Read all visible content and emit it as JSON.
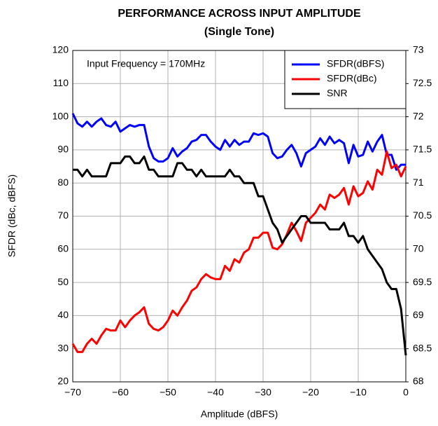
{
  "chart_data": {
    "type": "line",
    "title": "PERFORMANCE ACROSS INPUT AMPLITUDE",
    "subtitle": "(Single Tone)",
    "x_label": "Amplitude (dBFS)",
    "y_label": "SFDR (dBc, dBFS)",
    "annotation": "Input Frequency = 170MHz",
    "legend": "upper right",
    "grid": true,
    "xlim": [
      -70,
      0
    ],
    "xticks": [
      {
        "value": -70,
        "label": "−70"
      },
      {
        "value": -60,
        "label": "−60"
      },
      {
        "value": -50,
        "label": "−50"
      },
      {
        "value": -40,
        "label": "−40"
      },
      {
        "value": -30,
        "label": "−30"
      },
      {
        "value": -20,
        "label": "−20"
      },
      {
        "value": -10,
        "label": "−10"
      },
      0
    ],
    "ylim": [
      20,
      120
    ],
    "yticks": [
      20,
      30,
      40,
      50,
      60,
      70,
      80,
      90,
      100,
      110,
      120
    ],
    "y2lim": [
      68,
      73
    ],
    "y2ticks": [
      68,
      68.5,
      69,
      69.5,
      70,
      70.5,
      71,
      71.5,
      72,
      72.5,
      73
    ],
    "x": [
      -70,
      -69,
      -68,
      -67,
      -66,
      -65,
      -64,
      -63,
      -62,
      -61,
      -60,
      -59,
      -58,
      -57,
      -56,
      -55,
      -54,
      -53,
      -52,
      -51,
      -50,
      -49,
      -48,
      -47,
      -46,
      -45,
      -44,
      -43,
      -42,
      -41,
      -40,
      -39,
      -38,
      -37,
      -36,
      -35,
      -34,
      -33,
      -32,
      -31,
      -30,
      -29,
      -28,
      -27,
      -26,
      -25,
      -24,
      -23,
      -22,
      -21,
      -20,
      -19,
      -18,
      -17,
      -16,
      -15,
      -14,
      -13,
      -12,
      -11,
      -10,
      -9,
      -8,
      -7,
      -6,
      -5,
      -4,
      -3,
      -2,
      -1,
      0
    ],
    "series": [
      {
        "name": "SFDR(dBFS)",
        "color": "#0000ff",
        "values": [
          101,
          98,
          97,
          98.5,
          97,
          98.5,
          99.5,
          97.5,
          97,
          98.5,
          95.5,
          96.5,
          97.5,
          97,
          97.5,
          97.5,
          91,
          87.5,
          86.5,
          86.5,
          87.5,
          90.5,
          88,
          89.5,
          90.5,
          92.5,
          93,
          94.5,
          94.5,
          92.5,
          91,
          90,
          93,
          91,
          93,
          91.5,
          92.5,
          92.5,
          95,
          94.5,
          95,
          94,
          89,
          87.5,
          88,
          90,
          91.5,
          89,
          85,
          89,
          90,
          91,
          93.5,
          91.5,
          94,
          92,
          93,
          92,
          86,
          91.5,
          88,
          88.5,
          92.5,
          89.5,
          92.5,
          94.5,
          88.5,
          88.5,
          84,
          85.5,
          85.5
        ]
      },
      {
        "name": "SFDR(dBc)",
        "color": "#ff0000",
        "values": [
          31.5,
          29,
          29,
          31.5,
          33,
          31.5,
          34,
          36,
          35.5,
          35.5,
          38.5,
          36.5,
          38.5,
          40,
          41,
          42.5,
          37.5,
          36,
          35.5,
          36.5,
          38.5,
          41.5,
          40,
          42.5,
          44.5,
          47.5,
          48.5,
          51,
          52.5,
          51.5,
          51,
          51,
          55,
          53.5,
          57,
          56,
          59,
          60,
          63.5,
          63.5,
          65,
          65,
          60.5,
          60,
          61.5,
          64.5,
          68,
          65.5,
          62.5,
          68,
          69.5,
          71,
          73.5,
          72,
          76.5,
          75.5,
          76.5,
          78.5,
          73.5,
          79,
          76,
          77,
          80.5,
          78,
          84,
          82.5,
          89.5,
          84.5,
          85.5,
          82,
          85
        ]
      },
      {
        "name": "SNR",
        "color": "#000000",
        "axis": "y2",
        "values": [
          71.2,
          71.2,
          71.1,
          71.2,
          71.1,
          71.1,
          71.1,
          71.1,
          71.3,
          71.3,
          71.3,
          71.4,
          71.4,
          71.3,
          71.3,
          71.4,
          71.2,
          71.2,
          71.1,
          71.1,
          71.1,
          71.1,
          71.3,
          71.3,
          71.2,
          71.2,
          71.1,
          71.2,
          71.1,
          71.1,
          71.1,
          71.1,
          71.1,
          71.2,
          71.1,
          71.1,
          71,
          71,
          71,
          70.8,
          70.8,
          70.6,
          70.4,
          70.3,
          70.1,
          70.2,
          70.3,
          70.4,
          70.5,
          70.5,
          70.4,
          70.4,
          70.4,
          70.4,
          70.3,
          70.3,
          70.3,
          70.4,
          70.2,
          70.2,
          70.1,
          70.2,
          70,
          69.9,
          69.8,
          69.7,
          69.5,
          69.4,
          69.4,
          69.1,
          68.4
        ]
      }
    ]
  }
}
